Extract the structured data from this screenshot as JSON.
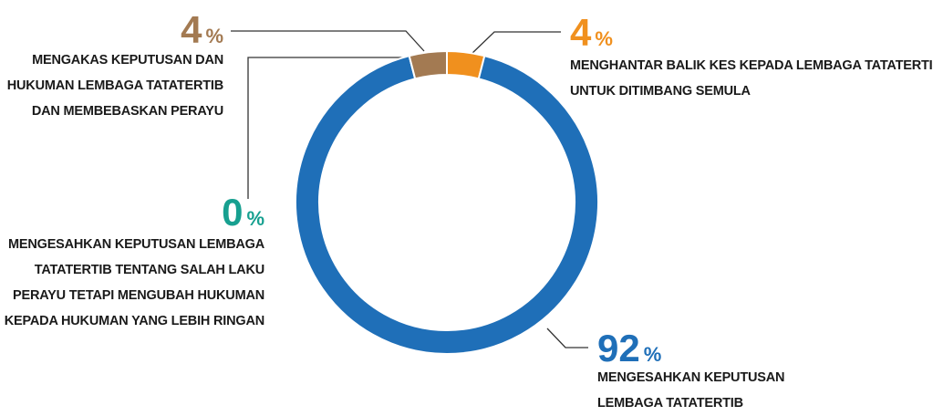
{
  "chart_data": {
    "type": "donut",
    "categories": [
      [
        "MENGHANTAR BALIK KES KEPADA LEMBAGA TATATERTIB",
        "UNTUK DITIMBANG SEMULA"
      ],
      [
        "MENGESAHKAN KEPUTUSAN",
        "LEMBAGA TATATERTIB"
      ],
      [
        "MENGESAHKAN KEPUTUSAN LEMBAGA",
        "TATATERTIB TENTANG SALAH LAKU",
        "PERAYU TETAPI MENGUBAH HUKUMAN",
        "KEPADA HUKUMAN YANG LEBIH RINGAN"
      ],
      [
        "MENGAKAS KEPUTUSAN DAN",
        "HUKUMAN LEMBAGA TATATERTIB",
        "DAN MEMBEBASKAN PERAYU"
      ]
    ],
    "values": [
      4,
      92,
      0,
      4
    ],
    "value_suffix": "%",
    "colors": [
      "#f0901e",
      "#1f6fb8",
      "#17a090",
      "#a37a52"
    ]
  }
}
